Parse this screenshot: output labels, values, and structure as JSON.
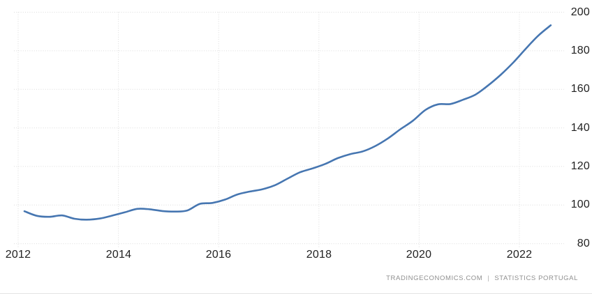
{
  "chart_data": {
    "type": "line",
    "title": "",
    "xlabel": "",
    "ylabel": "",
    "x": [
      2012.125,
      2012.375,
      2012.625,
      2012.875,
      2013.125,
      2013.375,
      2013.625,
      2013.875,
      2014.125,
      2014.375,
      2014.625,
      2014.875,
      2015.125,
      2015.375,
      2015.625,
      2015.875,
      2016.125,
      2016.375,
      2016.625,
      2016.875,
      2017.125,
      2017.375,
      2017.625,
      2017.875,
      2018.125,
      2018.375,
      2018.625,
      2018.875,
      2019.125,
      2019.375,
      2019.625,
      2019.875,
      2020.125,
      2020.375,
      2020.625,
      2020.875,
      2021.125,
      2021.375,
      2021.625,
      2021.875,
      2022.125,
      2022.375,
      2022.625
    ],
    "values": [
      96.8,
      94.4,
      93.9,
      94.6,
      92.9,
      92.4,
      93.0,
      94.5,
      96.2,
      98.0,
      97.8,
      96.9,
      96.6,
      97.2,
      100.6,
      101.1,
      102.8,
      105.5,
      107.0,
      108.2,
      110.3,
      113.7,
      117.0,
      119.0,
      121.3,
      124.3,
      126.4,
      127.8,
      130.6,
      134.5,
      139.3,
      143.7,
      149.3,
      152.2,
      152.4,
      154.6,
      157.3,
      162.0,
      167.5,
      173.8,
      181.0,
      187.8,
      193.2
    ],
    "x_tick_values": [
      2012,
      2014,
      2016,
      2018,
      2020,
      2022
    ],
    "x_tick_labels": [
      "2012",
      "2014",
      "2016",
      "2018",
      "2020",
      "2022"
    ],
    "y_tick_values": [
      80,
      100,
      120,
      140,
      160,
      180,
      200
    ],
    "y_tick_labels": [
      "80",
      "100",
      "120",
      "140",
      "160",
      "180",
      "200"
    ],
    "ylim": [
      80,
      200
    ],
    "xlim": [
      2012,
      2022.8
    ],
    "grid": "dotted",
    "legend": "none",
    "line_color": "#4676b1",
    "grid_color": "#dcdcdc",
    "tick_text_color": "#222222",
    "footer_text_color": "#8f8f8f"
  },
  "footer": {
    "source": "TRADINGECONOMICS.COM",
    "separator": "|",
    "attribution": "STATISTICS PORTUGAL"
  }
}
